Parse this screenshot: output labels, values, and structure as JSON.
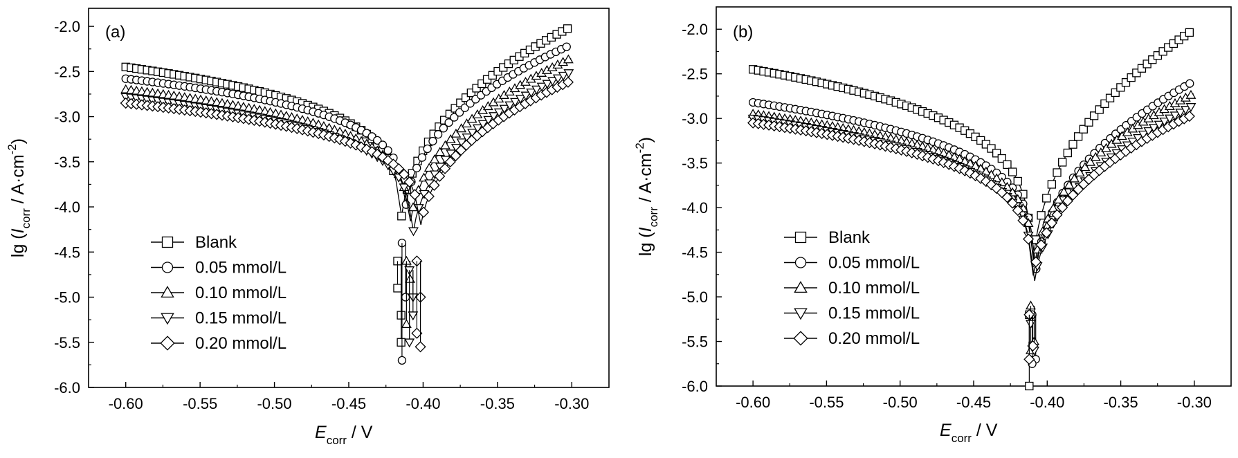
{
  "chart_data": [
    {
      "type": "scatter",
      "panel_label": "(a)",
      "xlabel": {
        "main": "E",
        "sub": "corr",
        "rest": " / V"
      },
      "ylabel": {
        "pre": "lg (",
        "main": "I",
        "sub": "corr",
        "rest": " / A·cm",
        "sup": "-2",
        "close": ")"
      },
      "xlim": [
        -0.625,
        -0.275
      ],
      "ylim": [
        -6.0,
        -1.8
      ],
      "xticks": [
        -0.6,
        -0.55,
        -0.5,
        -0.45,
        -0.4,
        -0.35,
        -0.3
      ],
      "xtick_labels": [
        "-0.60",
        "-0.55",
        "-0.50",
        "-0.45",
        "-0.40",
        "-0.35",
        "-0.30"
      ],
      "yticks": [
        -6.0,
        -5.5,
        -5.0,
        -4.5,
        -4.0,
        -3.5,
        -3.0,
        -2.5,
        -2.0
      ],
      "ytick_labels": [
        "-6.0",
        "-5.5",
        "-5.0",
        "-4.5",
        "-4.0",
        "-3.5",
        "-3.0",
        "-2.5",
        "-2.0"
      ],
      "legend_position": "bottom-left",
      "series": [
        {
          "name": "Blank",
          "marker": "square",
          "ecorr": -0.416,
          "start": -2.45,
          "end": -2.0,
          "tail": [
            -4.6,
            -5.2,
            -4.9,
            -5.5
          ]
        },
        {
          "name": "0.05 mmol/L",
          "marker": "circle",
          "ecorr": -0.413,
          "start": -2.58,
          "end": -2.2,
          "tail": [
            -4.4,
            -5.0,
            -5.7
          ]
        },
        {
          "name": "0.10 mmol/L",
          "marker": "triangle-up",
          "ecorr": -0.41,
          "start": -2.7,
          "end": -2.35,
          "tail": [
            -4.6,
            -4.8,
            -5.3
          ]
        },
        {
          "name": "0.15 mmol/L",
          "marker": "triangle-down",
          "ecorr": -0.408,
          "start": -2.78,
          "end": -2.5,
          "tail": [
            -4.7,
            -5.0,
            -5.5,
            -5.2
          ]
        },
        {
          "name": "0.20 mmol/L",
          "marker": "diamond",
          "ecorr": -0.403,
          "start": -2.85,
          "end": -2.6,
          "tail": [
            -4.6,
            -5.0,
            -5.4,
            -5.55
          ]
        }
      ]
    },
    {
      "type": "scatter",
      "panel_label": "(b)",
      "xlabel": {
        "main": "E",
        "sub": "corr",
        "rest": " / V"
      },
      "ylabel": {
        "pre": "lg (",
        "main": "I",
        "sub": "corr",
        "rest": " / A·cm",
        "sup": "-2",
        "close": ")"
      },
      "xlim": [
        -0.625,
        -0.275
      ],
      "ylim": [
        -6.0,
        -1.75
      ],
      "xticks": [
        -0.6,
        -0.55,
        -0.5,
        -0.45,
        -0.4,
        -0.35,
        -0.3
      ],
      "xtick_labels": [
        "-0.60",
        "-0.55",
        "-0.50",
        "-0.45",
        "-0.40",
        "-0.35",
        "-0.30"
      ],
      "yticks": [
        -6.0,
        -5.5,
        -5.0,
        -4.5,
        -4.0,
        -3.5,
        -3.0,
        -2.5,
        -2.0
      ],
      "ytick_labels": [
        "-6.0",
        "-5.5",
        "-5.0",
        "-4.5",
        "-4.0",
        "-3.5",
        "-3.0",
        "-2.5",
        "-2.0"
      ],
      "legend_position": "bottom-left",
      "series": [
        {
          "name": "Blank",
          "marker": "square",
          "ecorr": -0.411,
          "start": -2.45,
          "end": -2.0,
          "tail": [
            -5.2,
            -5.55,
            -6.0
          ]
        },
        {
          "name": "0.05 mmol/L",
          "marker": "circle",
          "ecorr": -0.409,
          "start": -2.82,
          "end": -2.58,
          "tail": [
            -5.2,
            -5.7,
            -5.75
          ]
        },
        {
          "name": "0.10 mmol/L",
          "marker": "triangle-up",
          "ecorr": -0.41,
          "start": -2.95,
          "end": -2.72,
          "tail": [
            -5.1,
            -5.5,
            -5.6
          ]
        },
        {
          "name": "0.15 mmol/L",
          "marker": "triangle-down",
          "ecorr": -0.41,
          "start": -3.0,
          "end": -2.85,
          "tail": [
            -5.3,
            -5.6
          ]
        },
        {
          "name": "0.20 mmol/L",
          "marker": "diamond",
          "ecorr": -0.411,
          "start": -3.05,
          "end": -2.95,
          "tail": [
            -5.2,
            -5.55,
            -5.7
          ]
        }
      ]
    }
  ]
}
